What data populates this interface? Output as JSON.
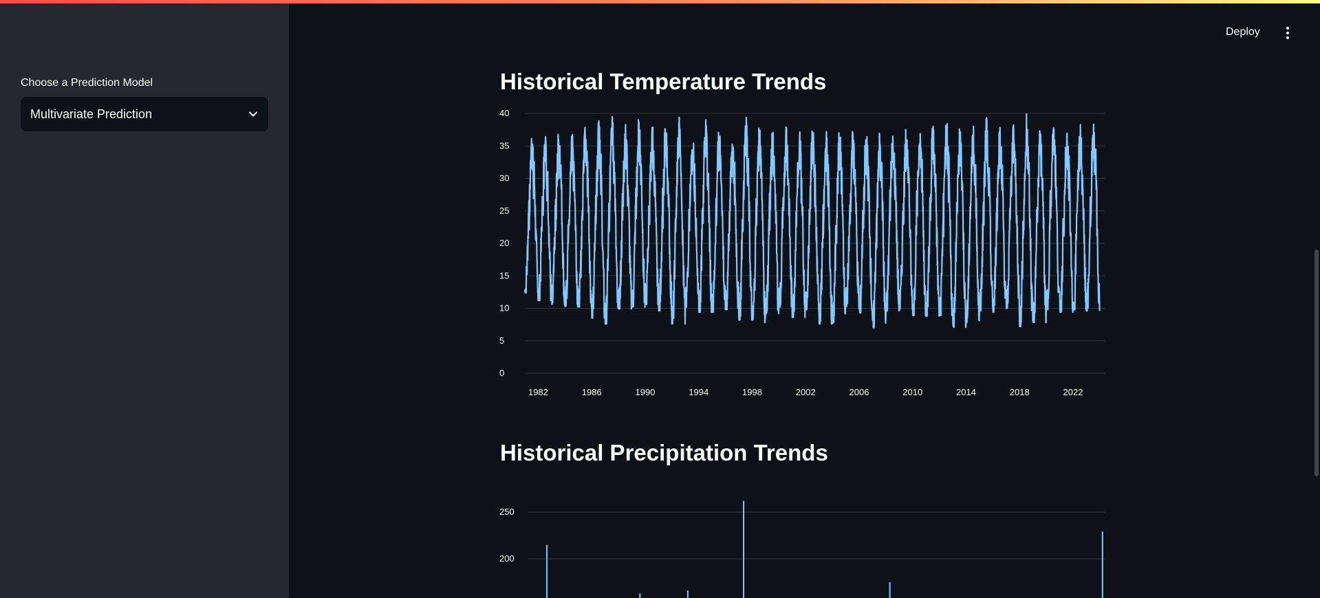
{
  "header": {
    "deploy_label": "Deploy",
    "menu_icon": "kebab-menu-icon"
  },
  "sidebar": {
    "select_label": "Choose a Prediction Model",
    "select_value": "Multivariate Prediction",
    "select_icon": "chevron-down-icon"
  },
  "colors": {
    "background": "#0e1117",
    "sidebar": "#262730",
    "series": "#83c9ff",
    "grid": "#31333f",
    "text": "#fafafa"
  },
  "main": {
    "temp_title": "Historical Temperature Trends",
    "precip_title": "Historical Precipitation Trends"
  },
  "chart_data": [
    {
      "type": "line",
      "title": "Historical Temperature Trends",
      "xlabel": "",
      "ylabel": "",
      "x_ticks": [
        "1982",
        "1986",
        "1990",
        "1994",
        "1998",
        "2002",
        "2006",
        "2010",
        "2014",
        "2018",
        "2022"
      ],
      "y_ticks": [
        0,
        5,
        10,
        15,
        20,
        25,
        30,
        35,
        40
      ],
      "ylim": [
        0,
        40
      ],
      "xlim": [
        "1981-01",
        "2024-06"
      ],
      "grid": true,
      "series": [
        {
          "color": "#83c9ff",
          "description": "Daily temperature with annual cycle, minima ~7-13, maxima ~35-40",
          "annual_min": [
            12.4,
            11.2,
            10.6,
            10.3,
            10.2,
            8.5,
            7.6,
            9.9,
            10.2,
            10.6,
            9.6,
            7.6,
            10.2,
            9.4,
            9.4,
            9.8,
            8.2,
            7.8,
            9.2,
            10.2,
            8.6,
            9.8,
            7.6,
            7.8,
            10.3,
            9.3,
            7.0,
            9.6,
            9.8,
            8.9,
            8.8,
            8.9,
            7.1,
            7.8,
            9.6,
            9.4,
            10.0,
            7.2,
            7.8,
            9.4,
            9.4,
            9.8,
            9.6
          ],
          "annual_max": [
            36.9,
            36.5,
            37.6,
            37.7,
            38.8,
            38.9,
            40.0,
            38.3,
            39.5,
            38.7,
            39.0,
            39.6,
            38.0,
            39.6,
            38.3,
            37.4,
            40.0,
            38.6,
            38.2,
            38.2,
            37.9,
            38.1,
            38.0,
            38.1,
            37.9,
            38.0,
            38.0,
            38.7,
            38.3,
            39.1,
            39.1,
            39.7,
            38.7,
            38.6,
            39.6,
            38.3,
            38.9,
            40.0,
            38.6,
            39.1,
            38.6,
            38.4,
            39.3
          ]
        }
      ]
    },
    {
      "type": "bar",
      "title": "Historical Precipitation Trends",
      "xlabel": "",
      "ylabel": "",
      "y_ticks": [
        200,
        250
      ],
      "grid": true,
      "visible_ylim": [
        160,
        270
      ],
      "xlim": [
        "1981-01",
        "2024-06"
      ],
      "series": [
        {
          "color": "#83c9ff",
          "visible_spikes": [
            {
              "x": 1982.4,
              "value": 215
            },
            {
              "x": 1989.4,
              "value": 163
            },
            {
              "x": 1993.0,
              "value": 166
            },
            {
              "x": 1997.2,
              "value": 262
            },
            {
              "x": 2008.2,
              "value": 175
            },
            {
              "x": 2024.2,
              "value": 229
            }
          ]
        }
      ]
    }
  ]
}
